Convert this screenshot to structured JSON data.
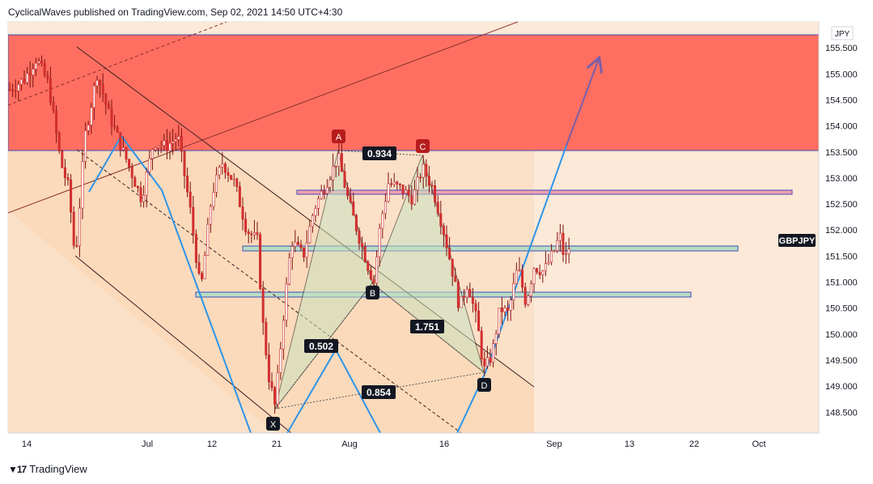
{
  "header": {
    "text": "CyclicalWaves published on TradingView.com, Sep 02, 2021 14:50 UTC+4:30"
  },
  "footer": {
    "brand": "TradingView",
    "logo": "tradingview-logo"
  },
  "chart_data": {
    "type": "candlestick",
    "symbol": "GBPJPY",
    "currency": "JPY",
    "last_price": 151.75,
    "ylim": [
      148.1,
      156.0
    ],
    "y_ticks": [
      "148.500",
      "149.000",
      "149.500",
      "150.000",
      "150.500",
      "151.000",
      "151.500",
      "152.000",
      "152.500",
      "153.000",
      "153.500",
      "154.000",
      "154.500",
      "155.000",
      "155.500"
    ],
    "x_ticks": [
      "14",
      "Jul",
      "12",
      "21",
      "Aug",
      "16",
      "Sep",
      "13",
      "22",
      "Oct"
    ],
    "harmonic_points": [
      {
        "label": "X",
        "value": 148.55
      },
      {
        "label": "A",
        "value": 153.45
      },
      {
        "label": "B",
        "value": 150.9
      },
      {
        "label": "C",
        "value": 153.3
      },
      {
        "label": "D",
        "value": 149.2
      }
    ],
    "ratios": [
      "0.934",
      "0.502",
      "1.751",
      "0.854"
    ],
    "zones": [
      {
        "name": "supply-zone",
        "top": 155.6,
        "bottom": 153.45,
        "color": "#ff6f61"
      },
      {
        "name": "resistance-band",
        "top": 152.68,
        "bottom": 152.6,
        "color": "#f4a0b0"
      },
      {
        "name": "support-band-upper",
        "top": 151.6,
        "bottom": 151.52,
        "color": "#b9dcc4"
      },
      {
        "name": "support-band-lower",
        "top": 150.7,
        "bottom": 150.62,
        "color": "#b9dcc4"
      }
    ],
    "colors": {
      "candle_down": "#d63031",
      "candle_up": "#d63031",
      "pattern_fill": "#c8e2c0",
      "projection": "#2e94e8",
      "marker_red": "#b71c1c",
      "marker_dark": "#131722",
      "background_zone": "#fbe0c8"
    }
  }
}
